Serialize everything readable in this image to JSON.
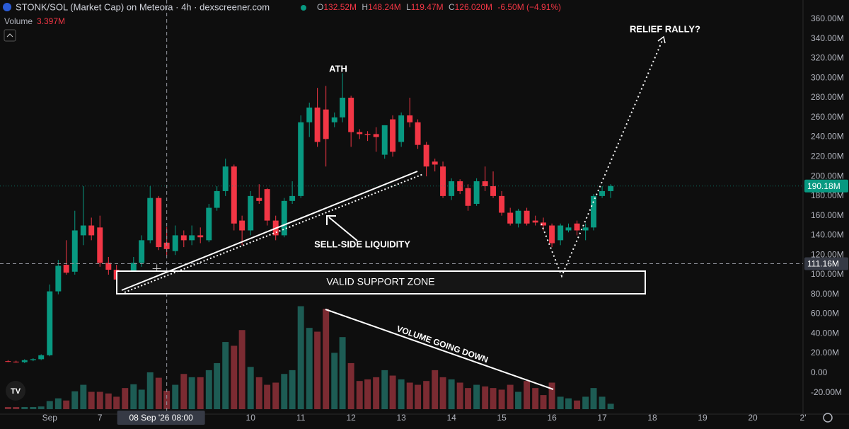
{
  "header": {
    "title": "STONK/SOL (Market Cap) on Meteora · 4h · dexscreener.com",
    "o_label": "O",
    "o": "132.52M",
    "h_label": "H",
    "h": "148.24M",
    "l_label": "L",
    "l": "119.47M",
    "c_label": "C",
    "c": "126.020M",
    "change": "-6.50M (−4.91%)",
    "volume_label": "Volume",
    "volume": "3.397M"
  },
  "chart_data": {
    "type": "candlestick",
    "x": [
      5.17,
      5.33,
      5.5,
      5.67,
      5.83,
      6,
      6.17,
      6.33,
      6.5,
      6.67,
      6.83,
      7,
      7.17,
      7.33,
      7.5,
      7.67,
      7.83,
      8,
      8.17,
      8.33,
      8.5,
      8.67,
      8.83,
      9,
      9.17,
      9.33,
      9.5,
      9.67,
      9.83,
      10,
      10.17,
      10.33,
      10.5,
      10.67,
      10.83,
      11,
      11.17,
      11.33,
      11.5,
      11.67,
      11.83,
      12,
      12.17,
      12.33,
      12.5,
      12.67,
      12.83,
      13,
      13.17,
      13.33,
      13.5,
      13.67,
      13.83,
      14,
      14.17,
      14.33,
      14.5,
      14.67,
      14.83,
      15,
      15.17,
      15.33,
      15.5,
      15.67,
      15.83,
      16,
      16.17,
      16.33,
      16.5,
      16.67,
      16.83,
      17,
      17.17
    ],
    "open": [
      12,
      11.5,
      11,
      13,
      14,
      18,
      83,
      110,
      103,
      140,
      150,
      148,
      112,
      105,
      95,
      88,
      112,
      135,
      178,
      132.52,
      124,
      140,
      135,
      140,
      135,
      168,
      185,
      210,
      155,
      145,
      178,
      187,
      155,
      140,
      175,
      180,
      255,
      270,
      268,
      255,
      260,
      280,
      245,
      243,
      243,
      222,
      258,
      235,
      262,
      255,
      232,
      215,
      210,
      180,
      195,
      188,
      172,
      195,
      190,
      180,
      163,
      152,
      165,
      155,
      153,
      150,
      135,
      145,
      152,
      145,
      148,
      180,
      185
    ],
    "high": [
      13,
      12.5,
      14,
      15,
      19,
      90,
      115,
      135,
      165,
      190,
      158,
      160,
      118,
      110,
      98,
      118,
      140,
      190,
      180,
      148.24,
      150,
      145,
      150,
      148,
      172,
      190,
      218,
      212,
      160,
      185,
      192,
      188,
      160,
      178,
      195,
      262,
      275,
      290,
      292,
      265,
      305,
      282,
      248,
      246,
      250,
      252,
      262,
      265,
      280,
      258,
      235,
      218,
      215,
      198,
      197,
      192,
      198,
      210,
      205,
      185,
      168,
      167,
      168,
      160,
      158,
      152,
      152,
      152,
      155,
      152,
      182,
      190,
      192
    ],
    "low": [
      11,
      10.5,
      10,
      12,
      13,
      17,
      80,
      100,
      100,
      130,
      135,
      108,
      100,
      92,
      80,
      85,
      108,
      132,
      125,
      119.47,
      120,
      128,
      130,
      132,
      133,
      165,
      180,
      145,
      130,
      140,
      172,
      150,
      135,
      138,
      172,
      178,
      240,
      230,
      210,
      250,
      255,
      230,
      238,
      236,
      225,
      218,
      220,
      230,
      250,
      228,
      200,
      205,
      178,
      176,
      182,
      165,
      170,
      185,
      178,
      160,
      150,
      148,
      150,
      150,
      145,
      128,
      130,
      143,
      140,
      135,
      145,
      178,
      178
    ],
    "close": [
      11.5,
      11,
      13,
      14,
      18,
      83,
      109,
      102,
      145,
      150,
      140,
      112,
      105,
      95,
      86,
      112,
      135,
      178,
      128,
      126.02,
      140,
      135,
      140,
      138,
      168,
      185,
      210,
      152,
      145,
      180,
      175,
      155,
      140,
      175,
      180,
      255,
      270,
      235,
      238,
      260,
      280,
      245,
      243,
      242,
      240,
      252,
      225,
      262,
      255,
      232,
      210,
      212,
      180,
      195,
      185,
      170,
      195,
      190,
      180,
      163,
      152,
      165,
      152,
      153,
      150,
      132,
      150,
      148,
      145,
      148,
      180,
      185,
      190.18
    ],
    "volume": [
      0.4,
      0.4,
      0.4,
      0.4,
      0.5,
      1.5,
      2,
      1.6,
      3.3,
      4.5,
      3.2,
      3.2,
      2.9,
      2.3,
      3.9,
      4.6,
      3.6,
      6.8,
      5.8,
      3.397,
      4.5,
      6.5,
      5.9,
      5.9,
      7.2,
      8.5,
      12.4,
      11.7,
      14.6,
      7.8,
      5.9,
      4.5,
      4.9,
      6.5,
      7.2,
      19,
      15,
      14.3,
      18.5,
      10.4,
      13.3,
      8.5,
      5.2,
      5.5,
      5.9,
      7.2,
      6.2,
      5.5,
      4.9,
      4.5,
      5.2,
      7.2,
      5.9,
      5.5,
      4.9,
      3.9,
      4.5,
      4.2,
      3.9,
      3.6,
      4.5,
      3.2,
      5.2,
      3.9,
      2.6,
      4.9,
      2.3,
      2,
      1.6,
      2.3,
      3.9,
      2.3,
      1
    ],
    "up_color": "#089981",
    "down_color": "#f23645",
    "volume_up_color": "#1d5c54",
    "volume_down_color": "#7b2b32",
    "xlim": [
      5.01,
      21.0
    ],
    "xticks": [
      {
        "value": 6,
        "label": "Sep"
      },
      7,
      10,
      11,
      12,
      13,
      14,
      15,
      16,
      17,
      18,
      19,
      20,
      {
        "value": 21,
        "label": "2'"
      }
    ],
    "ylim": [
      -41.9,
      379.4
    ],
    "yticks": [
      {
        "value": 360,
        "label": "360.00M"
      },
      {
        "value": 340,
        "label": "340.00M"
      },
      {
        "value": 320,
        "label": "320.00M"
      },
      {
        "value": 300,
        "label": "300.00M"
      },
      {
        "value": 280,
        "label": "280.00M"
      },
      {
        "value": 260,
        "label": "260.00M"
      },
      {
        "value": 240,
        "label": "240.00M"
      },
      {
        "value": 220,
        "label": "220.00M"
      },
      {
        "value": 200,
        "label": "200.00M"
      },
      {
        "value": 180,
        "label": "180.00M"
      },
      {
        "value": 160,
        "label": "160.00M"
      },
      {
        "value": 140,
        "label": "140.00M"
      },
      {
        "value": 120,
        "label": "120.00M"
      },
      {
        "value": 100,
        "label": "100.00M"
      },
      {
        "value": 80,
        "label": "80.00M"
      },
      {
        "value": 60,
        "label": "60.00M"
      },
      {
        "value": 40,
        "label": "40.00M"
      },
      {
        "value": 20,
        "label": "20.00M"
      },
      {
        "value": 0,
        "label": "0.00"
      },
      {
        "value": -20,
        "label": "-20.00M"
      }
    ],
    "y2lim": [
      0,
      75.5
    ],
    "last_price": {
      "value": 190.18,
      "label": "190.18M"
    },
    "crosshair": {
      "x": 8.33,
      "x_label": "08 Sep '26 08:00",
      "price": 111.16,
      "price_label": "111.16M"
    },
    "grid": false
  },
  "annotations": {
    "ath": "ATH",
    "relief": "RELIEF RALLY?",
    "sell_side": "SELL-SIDE LIQUIDITY",
    "support": "VALID SUPPORT ZONE",
    "volume": "VOLUME GOING DOWN"
  }
}
